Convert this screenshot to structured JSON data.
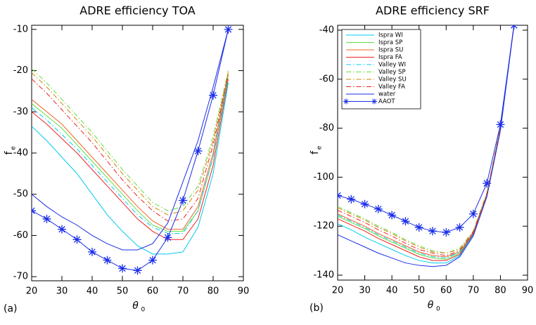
{
  "chart_data": [
    {
      "type": "line",
      "title": "ADRE efficiency TOA",
      "panel_label": "(a)",
      "xlabel": "θ",
      "xlabel_sub": "0",
      "ylabel": "f",
      "ylabel_sub": "e",
      "x": [
        20,
        25,
        30,
        35,
        40,
        45,
        50,
        55,
        60,
        65,
        70,
        75,
        80,
        85
      ],
      "xlim": [
        20,
        90
      ],
      "xticks": [
        20,
        30,
        40,
        50,
        60,
        70,
        80,
        90
      ],
      "ylim": [
        -71,
        -9
      ],
      "yticks": [
        -70,
        -60,
        -50,
        -40,
        -30,
        -20,
        -10
      ],
      "series": [
        {
          "color": "#00ccee",
          "dash": "solid",
          "values": [
            -33.5,
            -37,
            -41,
            -45,
            -50,
            -55,
            -59,
            -62.5,
            -64.5,
            -64.5,
            -64,
            -58,
            -45,
            -23
          ]
        },
        {
          "color": "#66dd44",
          "dash": "solid",
          "values": [
            -28,
            -31,
            -34,
            -38,
            -42,
            -46,
            -50,
            -54,
            -57.5,
            -59,
            -59,
            -54,
            -41,
            -21
          ]
        },
        {
          "color": "#f0642a",
          "dash": "solid",
          "values": [
            -27,
            -30,
            -33,
            -37,
            -41,
            -45,
            -49,
            -53,
            -56.5,
            -58.5,
            -58.5,
            -53,
            -40,
            -20.5
          ]
        },
        {
          "color": "#ee2222",
          "dash": "solid",
          "values": [
            -30,
            -33,
            -36.5,
            -40,
            -44,
            -48,
            -52,
            -56,
            -59,
            -61,
            -61,
            -56,
            -43,
            -22
          ]
        },
        {
          "color": "#00ccee",
          "dash": "dashdot",
          "values": [
            -29,
            -32,
            -35.5,
            -39,
            -43,
            -47,
            -51,
            -55,
            -58,
            -59.5,
            -59.5,
            -54,
            -41,
            -21.5
          ]
        },
        {
          "color": "#66dd44",
          "dash": "dashdot",
          "values": [
            -19.5,
            -23,
            -27,
            -31,
            -35,
            -39.5,
            -44,
            -48,
            -52,
            -54,
            -53,
            -48,
            -36,
            -20
          ]
        },
        {
          "color": "#cc8800",
          "dash": "dashdot",
          "values": [
            -20.5,
            -24,
            -28,
            -32,
            -36,
            -40.5,
            -45,
            -49,
            -53,
            -55,
            -54,
            -49,
            -37,
            -20.5
          ]
        },
        {
          "color": "#ee2222",
          "dash": "dashdot",
          "values": [
            -22,
            -25.5,
            -29.5,
            -33.5,
            -37.5,
            -42,
            -46.5,
            -50.5,
            -54,
            -56.5,
            -56,
            -51,
            -38,
            -21
          ]
        },
        {
          "color": "#1a2ee8",
          "dash": "solid",
          "values": [
            -50,
            -53,
            -55.5,
            -57.5,
            -60,
            -62,
            -63.5,
            -63.5,
            -62,
            -57,
            -47,
            -37,
            -24,
            -10
          ]
        },
        {
          "color": "#1a2ee8",
          "dash": "solid",
          "marker": "star",
          "values": [
            -54,
            -56,
            -58.5,
            -61,
            -64,
            -66,
            -68,
            -68.5,
            -66,
            -60.5,
            -51.5,
            -39.5,
            -26,
            -10
          ]
        }
      ]
    },
    {
      "type": "line",
      "title": "ADRE efficiency SRF",
      "panel_label": "(b)",
      "xlabel": "θ",
      "xlabel_sub": "0",
      "ylabel": "f",
      "ylabel_sub": "e",
      "x": [
        20,
        25,
        30,
        35,
        40,
        45,
        50,
        55,
        60,
        65,
        70,
        75,
        80,
        85
      ],
      "xlim": [
        20,
        90
      ],
      "xticks": [
        20,
        30,
        40,
        50,
        60,
        70,
        80,
        90
      ],
      "ylim": [
        -142,
        -38
      ],
      "yticks": [
        -140,
        -120,
        -100,
        -80,
        -60,
        -40
      ],
      "legend": "upper left",
      "series": [
        {
          "name": "Ispra WI",
          "color": "#00ccee",
          "dash": "solid",
          "values": [
            -119,
            -121.5,
            -124.5,
            -127,
            -129.5,
            -132,
            -134,
            -135,
            -135,
            -132,
            -123.5,
            -107.5,
            -80.5,
            -38
          ]
        },
        {
          "name": "Ispra SP",
          "color": "#66dd44",
          "dash": "solid",
          "values": [
            -116,
            -118.5,
            -121,
            -124,
            -126.5,
            -129,
            -131.5,
            -133,
            -133.5,
            -131,
            -123,
            -107,
            -80,
            -38
          ]
        },
        {
          "name": "Ispra SU",
          "color": "#f0642a",
          "dash": "solid",
          "values": [
            -115,
            -117.5,
            -120,
            -123,
            -125.5,
            -128,
            -130.5,
            -132,
            -132.5,
            -130.5,
            -122.5,
            -107,
            -80,
            -38
          ]
        },
        {
          "name": "Ispra FA",
          "color": "#ee2222",
          "dash": "solid",
          "values": [
            -117,
            -119.5,
            -122,
            -125,
            -127.5,
            -130,
            -132.5,
            -134,
            -134,
            -131.5,
            -123,
            -107,
            -80,
            -38
          ]
        },
        {
          "name": "Valley WI",
          "color": "#00ccee",
          "dash": "dashdot",
          "values": [
            -115.5,
            -118,
            -120.5,
            -123.5,
            -126,
            -128.5,
            -131,
            -132.5,
            -133,
            -130.5,
            -122.5,
            -107,
            -80,
            -38
          ]
        },
        {
          "name": "Valley SP",
          "color": "#66dd44",
          "dash": "dashdot",
          "values": [
            -112,
            -114.5,
            -117,
            -120,
            -122.5,
            -125.5,
            -128,
            -130,
            -131,
            -129,
            -122,
            -106.5,
            -79.5,
            -38
          ]
        },
        {
          "name": "Valley SU",
          "color": "#cc8800",
          "dash": "dashdot",
          "values": [
            -112.5,
            -115,
            -117.5,
            -120.5,
            -123,
            -126,
            -128.5,
            -130.5,
            -131,
            -129.5,
            -122,
            -106.5,
            -79.5,
            -38
          ]
        },
        {
          "name": "Valley FA",
          "color": "#ee2222",
          "dash": "dashdot",
          "values": [
            -113.5,
            -116,
            -118.5,
            -121.5,
            -124,
            -127,
            -129.5,
            -131,
            -132,
            -130,
            -122.5,
            -107,
            -80,
            -38
          ]
        },
        {
          "name": "water",
          "color": "#1a2ee8",
          "dash": "solid",
          "values": [
            -123.5,
            -126,
            -128.5,
            -131,
            -133,
            -135,
            -136,
            -136.5,
            -136,
            -132.5,
            -124,
            -108,
            -81,
            -38
          ]
        },
        {
          "name": "AAOT",
          "color": "#1a2ee8",
          "dash": "solid",
          "marker": "star",
          "values": [
            -107.5,
            -109,
            -111,
            -113,
            -115.5,
            -118,
            -120.5,
            -122,
            -122.5,
            -120.5,
            -115,
            -102.5,
            -78.5,
            -38
          ]
        }
      ]
    }
  ]
}
